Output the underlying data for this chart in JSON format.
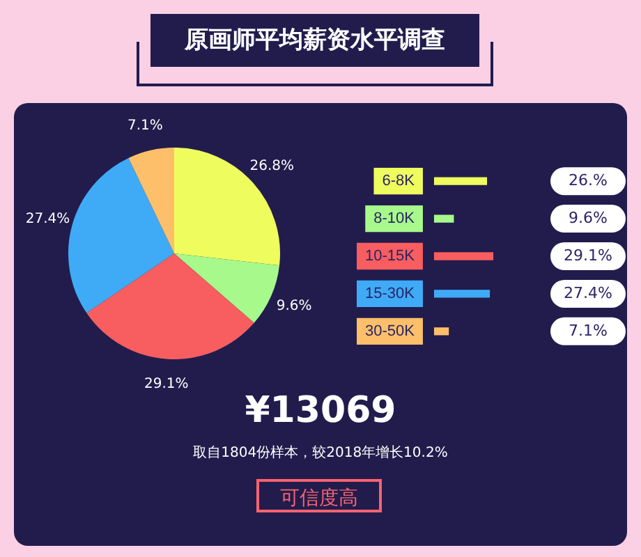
{
  "chart_data": [
    {
      "type": "pie",
      "title": "原画师平均薪资水平调查",
      "categories": [
        null,
        null,
        null,
        null,
        null
      ],
      "values": [
        26.8,
        9.6,
        29.1,
        27.4,
        7.1
      ],
      "colors": [
        "#eefc5e",
        "#a6f98a",
        "#f85d5f",
        "#3fabf7",
        "#fdbf6a"
      ],
      "value_labels": [
        "26.8%",
        "9.6%",
        "29.1%",
        "27.4%",
        "7.1%"
      ],
      "legend": false,
      "annotations": [
        "¥13069",
        "取自1804份样本，较2018年增长10.2%",
        "可信度高"
      ]
    },
    {
      "type": "bar",
      "orientation": "horizontal",
      "categories": [
        "6-8K",
        "8-10K",
        "10-15K",
        "15-30K",
        "30-50K"
      ],
      "values": [
        26,
        9.6,
        29.1,
        27.4,
        7.1
      ],
      "colors": [
        "#eefc5e",
        "#a6f98a",
        "#f85d5f",
        "#3fabf7",
        "#fdbf6a"
      ],
      "value_labels": [
        "26.%",
        "9.6%",
        "29.1%",
        "27.4%",
        "7.1%"
      ],
      "tick_labels": "y",
      "legend": false
    }
  ]
}
